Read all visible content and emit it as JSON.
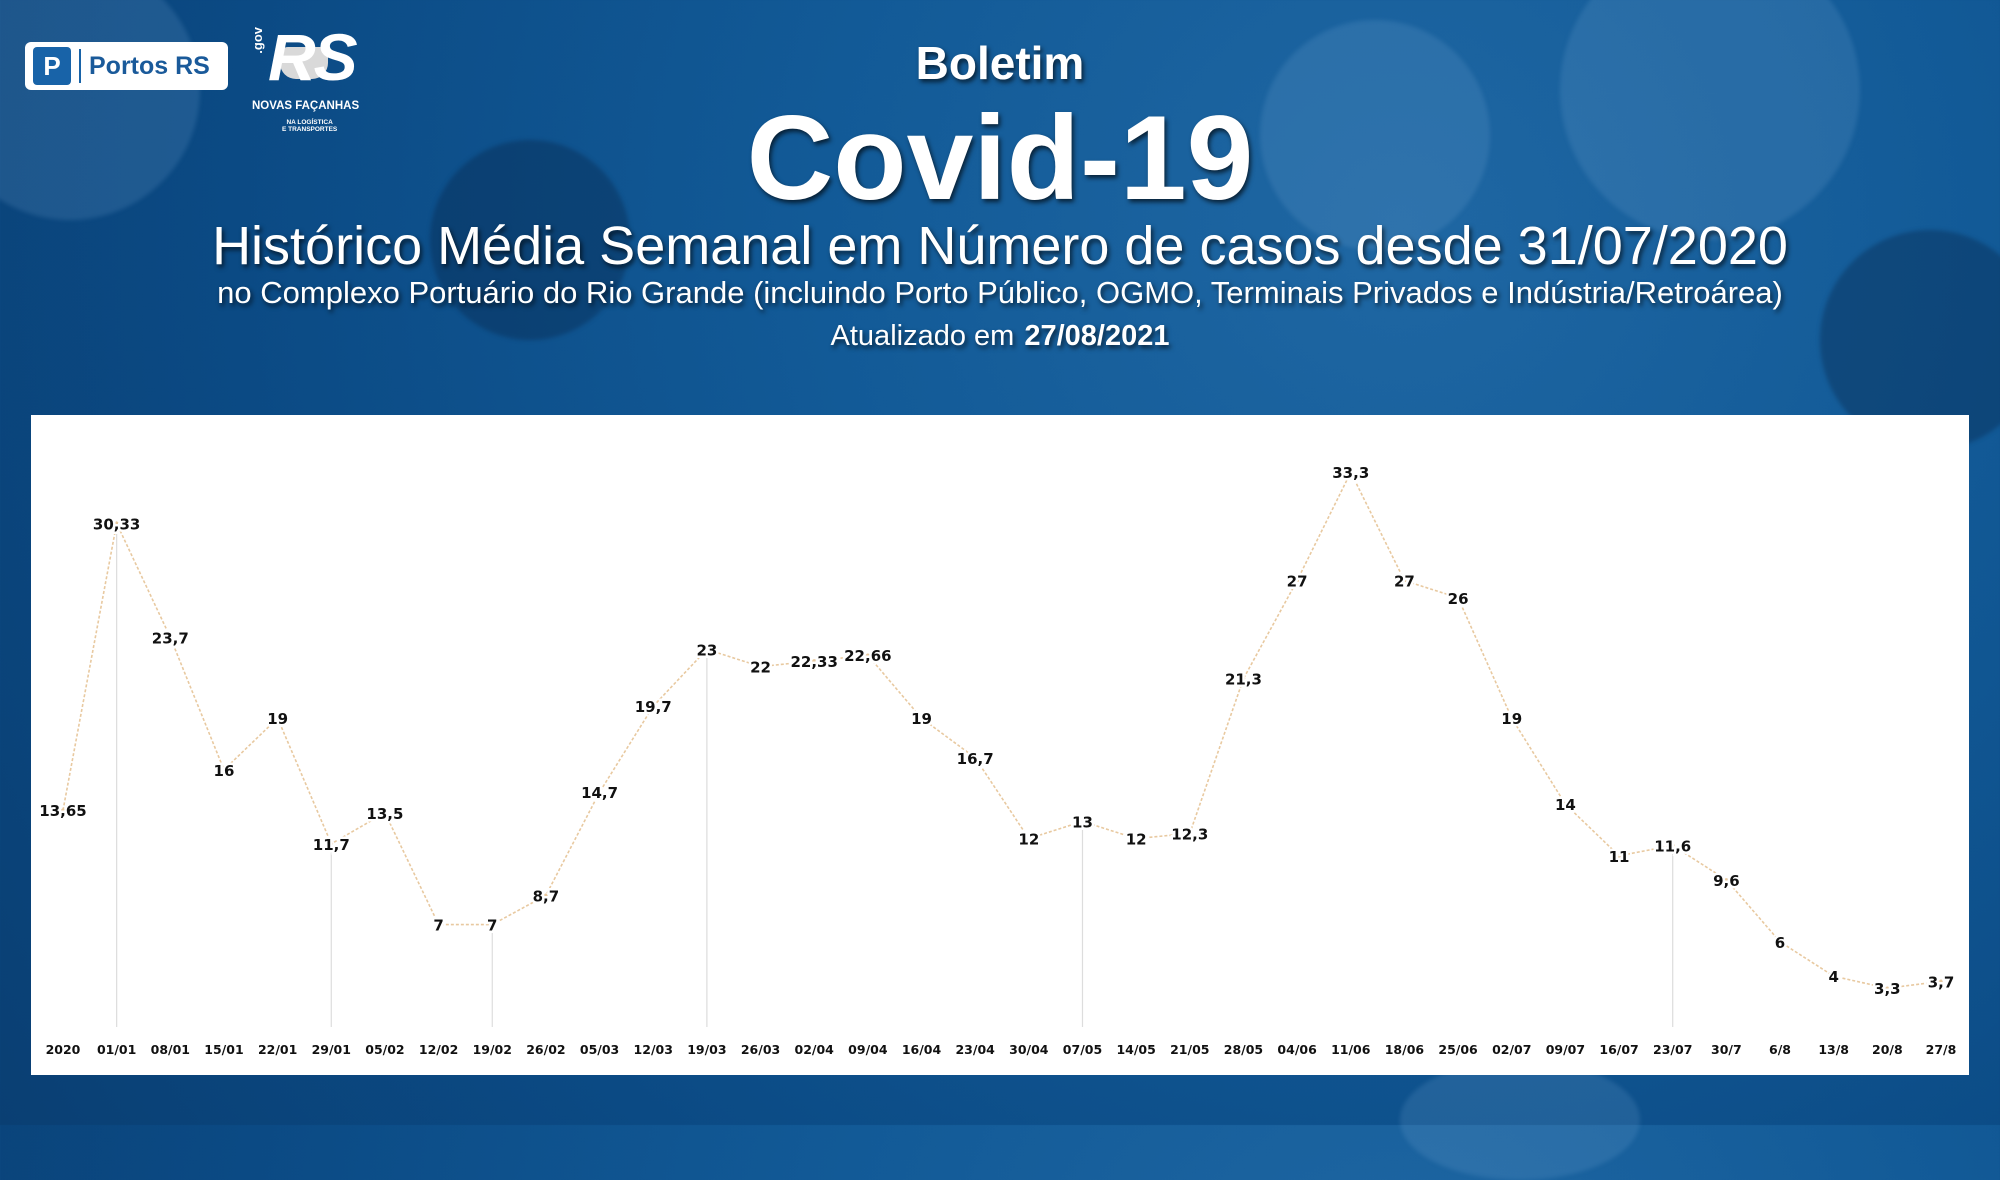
{
  "logo": {
    "mark": "P",
    "text": "Portos RS"
  },
  "gov_logo": {
    "prefix": ".gov",
    "rs": "RS",
    "subtitle": "NOVAS FAÇANHAS",
    "subtitle2": "NA LOGÍSTICA\nE TRANSPORTES"
  },
  "header": {
    "boletim": "Boletim",
    "title": "Covid-19",
    "subtitle": "Histórico Média Semanal em Número de casos desde 31/07/2020",
    "description": "no Complexo Portuário do Rio Grande (incluindo Porto Público, OGMO, Terminais Privados e Indústria/Retroárea)",
    "updated_label": "Atualizado em",
    "updated_date": "27/08/2021"
  },
  "colors": {
    "background": "#0b4a84",
    "line": "#e8c9a0",
    "drop_line": "#dddddd",
    "label": "#111111"
  },
  "chart_data": {
    "type": "line",
    "categories": [
      "2020",
      "01/01",
      "08/01",
      "15/01",
      "22/01",
      "29/01",
      "05/02",
      "12/02",
      "19/02",
      "26/02",
      "05/03",
      "12/03",
      "19/03",
      "26/03",
      "02/04",
      "09/04",
      "16/04",
      "23/04",
      "30/04",
      "07/05",
      "14/05",
      "21/05",
      "28/05",
      "04/06",
      "11/06",
      "18/06",
      "25/06",
      "02/07",
      "09/07",
      "16/07",
      "23/07",
      "30/7",
      "6/8",
      "13/8",
      "20/8",
      "27/8"
    ],
    "values": [
      13.65,
      30.33,
      23.7,
      16,
      19,
      11.7,
      13.5,
      7,
      7,
      8.7,
      14.7,
      19.7,
      23,
      22,
      22.33,
      22.66,
      19,
      16.7,
      12,
      13,
      12,
      12.3,
      21.3,
      27,
      33.3,
      27,
      26,
      19,
      14,
      11,
      11.6,
      9.6,
      6,
      4,
      3.3,
      3.7
    ],
    "value_labels": [
      "13,65",
      "30,33",
      "23,7",
      "16",
      "19",
      "11,7",
      "13,5",
      "7",
      "7",
      "8,7",
      "14,7",
      "19,7",
      "23",
      "22",
      "22,33",
      "22,66",
      "19",
      "16,7",
      "12",
      "13",
      "12",
      "12,3",
      "21,3",
      "27",
      "33,3",
      "27",
      "26",
      "19",
      "14",
      "11",
      "11,6",
      "9,6",
      "6",
      "4",
      "3,3",
      "3,7"
    ],
    "drop_lines_at": [
      "01/01",
      "29/01",
      "19/02",
      "19/03",
      "07/05",
      "23/07"
    ],
    "ylim": [
      0,
      35
    ],
    "grid": false,
    "legend": "none"
  }
}
